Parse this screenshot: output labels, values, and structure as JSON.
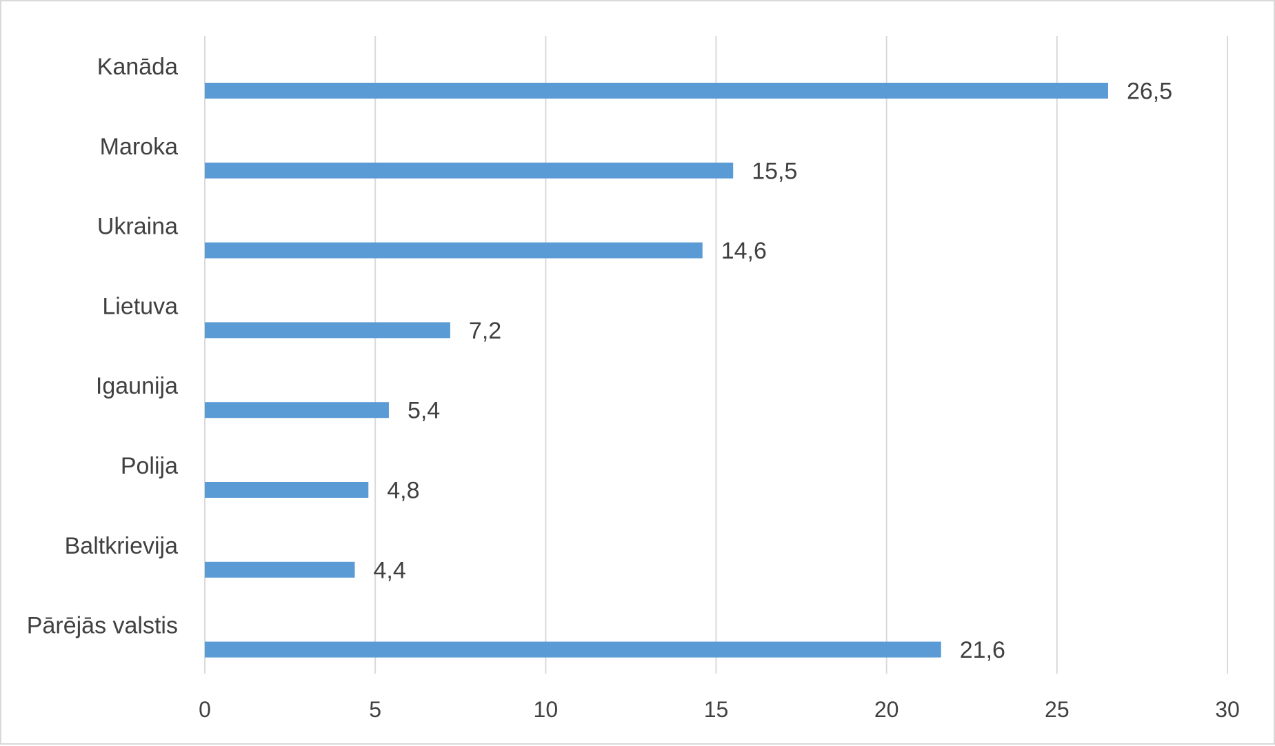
{
  "chart_data": {
    "type": "bar",
    "orientation": "horizontal",
    "categories": [
      "Kanāda",
      "Maroka",
      "Ukraina",
      "Lietuva",
      "Igaunija",
      "Polija",
      "Baltkrievija",
      "Pārējās valstis"
    ],
    "values": [
      26.5,
      15.5,
      14.6,
      7.2,
      5.4,
      4.8,
      4.4,
      21.6
    ],
    "value_labels": [
      "26,5",
      "15,5",
      "14,6",
      "7,2",
      "5,4",
      "4,8",
      "4,4",
      "21,6"
    ],
    "title": "",
    "xlabel": "",
    "ylabel": "",
    "xlim": [
      0,
      30
    ],
    "x_ticks": [
      0,
      5,
      10,
      15,
      20,
      25,
      30
    ],
    "x_tick_labels": [
      "0",
      "5",
      "10",
      "15",
      "20",
      "25",
      "30"
    ],
    "grid": "vertical",
    "legend": "none",
    "bar_color": "#5b9bd5"
  }
}
